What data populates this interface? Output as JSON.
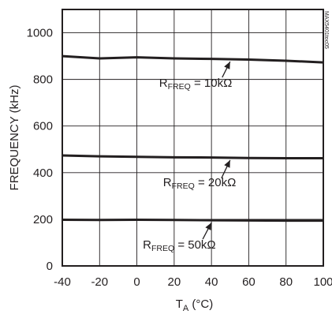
{
  "chart_data": {
    "type": "line",
    "xlabel": "T",
    "xlabel_sub": "A",
    "xlabel_unit": " (°C)",
    "ylabel": "FREQUENCY (kHz)",
    "xlim": [
      -40,
      100
    ],
    "ylim": [
      0,
      1100
    ],
    "x_ticks": [
      -40,
      -20,
      0,
      20,
      40,
      60,
      80,
      100
    ],
    "x_tick_labels": [
      "-40",
      "-20",
      "0",
      "20",
      "40",
      "60",
      "80",
      "100"
    ],
    "y_ticks": [
      0,
      200,
      400,
      600,
      800,
      1000
    ],
    "y_tick_labels": [
      "0",
      "200",
      "400",
      "600",
      "800",
      "1000"
    ],
    "grid": true,
    "side_id": "MAX5401toc05",
    "series": [
      {
        "name": "RFREQ = 10kΩ",
        "x": [
          -40,
          -20,
          0,
          20,
          40,
          60,
          80,
          100
        ],
        "values": [
          900,
          890,
          895,
          890,
          888,
          885,
          880,
          873
        ]
      },
      {
        "name": "RFREQ = 20kΩ",
        "x": [
          -40,
          -20,
          0,
          20,
          40,
          60,
          80,
          100
        ],
        "values": [
          474,
          470,
          468,
          466,
          465,
          463,
          462,
          462
        ]
      },
      {
        "name": "RFREQ = 50kΩ",
        "x": [
          -40,
          -20,
          0,
          20,
          40,
          60,
          80,
          100
        ],
        "values": [
          198,
          197,
          198,
          197,
          196,
          195,
          194,
          194
        ]
      }
    ],
    "annotations": [
      {
        "series": 0,
        "r": "R",
        "sub": "FREQ",
        "rest": " = 10kΩ",
        "at_x": 50
      },
      {
        "series": 1,
        "r": "R",
        "sub": "FREQ",
        "rest": " = 20kΩ",
        "at_x": 50
      },
      {
        "series": 2,
        "r": "R",
        "sub": "FREQ",
        "rest": " = 50kΩ",
        "at_x": 40
      }
    ]
  }
}
